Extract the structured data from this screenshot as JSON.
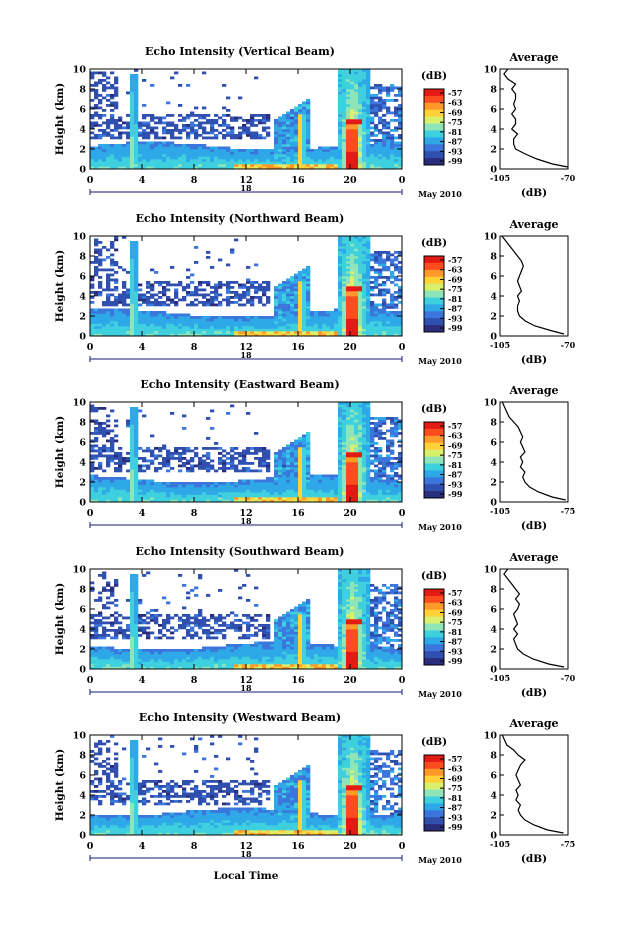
{
  "page": {
    "xlabel": "Local Time"
  },
  "colors": {
    "scale": [
      "#2a2c7c",
      "#3050b0",
      "#3a76dc",
      "#2fa8e8",
      "#3fd0e0",
      "#8ee6b8",
      "#d8f06c",
      "#ffd23a",
      "#ff9a2a",
      "#ff4c1e",
      "#e41a14"
    ]
  },
  "chart_data": [
    {
      "type": "heatmap",
      "title": "Echo Intensity (Vertical Beam)",
      "xlabel": "",
      "ylabel": "Height (km)",
      "x_ticks": [
        "0",
        "4",
        "8",
        "12",
        "16",
        "20",
        "0"
      ],
      "y_ticks": [
        "0",
        "2",
        "4",
        "6",
        "8",
        "10"
      ],
      "xlim": [
        0,
        24
      ],
      "ylim": [
        0,
        10
      ],
      "date_marker": "18",
      "date_label": "May 2010",
      "colorbar": {
        "unit": "(dB)",
        "ticks": [
          "-57",
          "-63",
          "-69",
          "-75",
          "-81",
          "-87",
          "-93",
          "-99"
        ]
      },
      "average": {
        "title": "Average",
        "xlabel": "(dB)",
        "x_ticks": [
          "-105",
          "-70"
        ],
        "xlim": [
          -105,
          -70
        ],
        "y_ticks": [
          "0",
          "2",
          "4",
          "6",
          "8",
          "10"
        ],
        "ylim": [
          0,
          10
        ],
        "profile": [
          [
            0.2,
            -70
          ],
          [
            0.5,
            -78
          ],
          [
            1.0,
            -86
          ],
          [
            1.5,
            -92
          ],
          [
            2.0,
            -97
          ],
          [
            2.5,
            -98
          ],
          [
            3.0,
            -98
          ],
          [
            3.5,
            -96
          ],
          [
            4.0,
            -99
          ],
          [
            4.5,
            -97
          ],
          [
            5.0,
            -97
          ],
          [
            5.5,
            -99
          ],
          [
            6.0,
            -97
          ],
          [
            6.5,
            -98
          ],
          [
            7.0,
            -97
          ],
          [
            7.5,
            -97
          ],
          [
            8.0,
            -99
          ],
          [
            8.5,
            -97
          ],
          [
            9.0,
            -101
          ],
          [
            9.5,
            -103
          ],
          [
            10.0,
            -101
          ]
        ]
      }
    },
    {
      "type": "heatmap",
      "title": "Echo Intensity (Northward Beam)",
      "xlabel": "",
      "ylabel": "Height (km)",
      "x_ticks": [
        "0",
        "4",
        "8",
        "12",
        "16",
        "20",
        "0"
      ],
      "y_ticks": [
        "0",
        "2",
        "4",
        "6",
        "8",
        "10"
      ],
      "xlim": [
        0,
        24
      ],
      "ylim": [
        0,
        10
      ],
      "date_marker": "18",
      "date_label": "May 2010",
      "colorbar": {
        "unit": "(dB)",
        "ticks": [
          "-57",
          "-63",
          "-69",
          "-75",
          "-81",
          "-87",
          "-93",
          "-99"
        ]
      },
      "average": {
        "title": "Average",
        "xlabel": "(dB)",
        "x_ticks": [
          "-105",
          "-70"
        ],
        "xlim": [
          -105,
          -70
        ],
        "y_ticks": [
          "0",
          "2",
          "4",
          "6",
          "8",
          "10"
        ],
        "ylim": [
          0,
          10
        ],
        "profile": [
          [
            0.2,
            -72
          ],
          [
            0.5,
            -78
          ],
          [
            1.0,
            -87
          ],
          [
            1.5,
            -92
          ],
          [
            2.0,
            -95
          ],
          [
            2.5,
            -96
          ],
          [
            3.0,
            -96
          ],
          [
            3.5,
            -95
          ],
          [
            4.0,
            -96
          ],
          [
            4.5,
            -94
          ],
          [
            5.0,
            -95
          ],
          [
            5.5,
            -96
          ],
          [
            6.0,
            -95
          ],
          [
            6.5,
            -94
          ],
          [
            7.0,
            -93
          ],
          [
            7.5,
            -94
          ],
          [
            8.0,
            -96
          ],
          [
            8.5,
            -98
          ],
          [
            9.0,
            -100
          ],
          [
            9.5,
            -102
          ],
          [
            10.0,
            -104
          ]
        ]
      }
    },
    {
      "type": "heatmap",
      "title": "Echo Intensity (Eastward Beam)",
      "xlabel": "",
      "ylabel": "Height (km)",
      "x_ticks": [
        "0",
        "4",
        "8",
        "12",
        "16",
        "20",
        "0"
      ],
      "y_ticks": [
        "0",
        "2",
        "4",
        "6",
        "8",
        "10"
      ],
      "xlim": [
        0,
        24
      ],
      "ylim": [
        0,
        10
      ],
      "date_marker": "18",
      "date_label": "May 2010",
      "colorbar": {
        "unit": "(dB)",
        "ticks": [
          "-57",
          "-63",
          "-69",
          "-75",
          "-81",
          "-87",
          "-93",
          "-99"
        ]
      },
      "average": {
        "title": "Average",
        "xlabel": "(dB)",
        "x_ticks": [
          "-105",
          "-75"
        ],
        "xlim": [
          -105,
          -75
        ],
        "y_ticks": [
          "0",
          "2",
          "4",
          "6",
          "8",
          "10"
        ],
        "ylim": [
          0,
          10
        ],
        "profile": [
          [
            0.2,
            -76
          ],
          [
            0.5,
            -82
          ],
          [
            1.0,
            -88
          ],
          [
            1.5,
            -92
          ],
          [
            2.0,
            -94
          ],
          [
            2.5,
            -95
          ],
          [
            3.0,
            -94
          ],
          [
            3.5,
            -96
          ],
          [
            4.0,
            -95
          ],
          [
            4.5,
            -96
          ],
          [
            5.0,
            -94
          ],
          [
            5.5,
            -95
          ],
          [
            6.0,
            -96
          ],
          [
            6.5,
            -95
          ],
          [
            7.0,
            -96
          ],
          [
            7.5,
            -97
          ],
          [
            8.0,
            -99
          ],
          [
            8.5,
            -101
          ],
          [
            9.0,
            -102
          ],
          [
            9.5,
            -103
          ],
          [
            10.0,
            -104
          ]
        ]
      }
    },
    {
      "type": "heatmap",
      "title": "Echo Intensity (Southward Beam)",
      "xlabel": "",
      "ylabel": "Height (km)",
      "x_ticks": [
        "0",
        "4",
        "8",
        "12",
        "16",
        "20",
        "0"
      ],
      "y_ticks": [
        "0",
        "2",
        "4",
        "6",
        "8",
        "10"
      ],
      "xlim": [
        0,
        24
      ],
      "ylim": [
        0,
        10
      ],
      "date_marker": "18",
      "date_label": "May 2010",
      "colorbar": {
        "unit": "(dB)",
        "ticks": [
          "-57",
          "-63",
          "-69",
          "-75",
          "-81",
          "-87",
          "-93",
          "-99"
        ]
      },
      "average": {
        "title": "Average",
        "xlabel": "(dB)",
        "x_ticks": [
          "-105",
          "-70"
        ],
        "xlim": [
          -105,
          -70
        ],
        "y_ticks": [
          "0",
          "2",
          "4",
          "6",
          "8",
          "10"
        ],
        "ylim": [
          0,
          10
        ],
        "profile": [
          [
            0.2,
            -72
          ],
          [
            0.5,
            -80
          ],
          [
            1.0,
            -88
          ],
          [
            1.5,
            -93
          ],
          [
            2.0,
            -96
          ],
          [
            2.5,
            -97
          ],
          [
            3.0,
            -98
          ],
          [
            3.5,
            -96
          ],
          [
            4.0,
            -98
          ],
          [
            4.5,
            -96
          ],
          [
            5.0,
            -97
          ],
          [
            5.5,
            -98
          ],
          [
            6.0,
            -96
          ],
          [
            6.5,
            -95
          ],
          [
            7.0,
            -97
          ],
          [
            7.5,
            -95
          ],
          [
            8.0,
            -97
          ],
          [
            8.5,
            -99
          ],
          [
            9.0,
            -101
          ],
          [
            9.5,
            -103
          ],
          [
            10.0,
            -101
          ]
        ]
      }
    },
    {
      "type": "heatmap",
      "title": "Echo Intensity (Westward Beam)",
      "xlabel": "Local Time",
      "ylabel": "Height (km)",
      "x_ticks": [
        "0",
        "4",
        "8",
        "12",
        "16",
        "20",
        "0"
      ],
      "y_ticks": [
        "0",
        "2",
        "4",
        "6",
        "8",
        "10"
      ],
      "xlim": [
        0,
        24
      ],
      "ylim": [
        0,
        10
      ],
      "date_marker": "18",
      "date_label": "May 2010",
      "colorbar": {
        "unit": "(dB)",
        "ticks": [
          "-57",
          "-63",
          "-69",
          "-75",
          "-81",
          "-87",
          "-93",
          "-99"
        ]
      },
      "average": {
        "title": "Average",
        "xlabel": "(dB)",
        "x_ticks": [
          "-105",
          "-75"
        ],
        "xlim": [
          -105,
          -75
        ],
        "y_ticks": [
          "0",
          "2",
          "4",
          "6",
          "8",
          "10"
        ],
        "ylim": [
          0,
          10
        ],
        "profile": [
          [
            0.2,
            -77
          ],
          [
            0.5,
            -84
          ],
          [
            1.0,
            -90
          ],
          [
            1.5,
            -94
          ],
          [
            2.0,
            -96
          ],
          [
            2.5,
            -97
          ],
          [
            3.0,
            -96
          ],
          [
            3.5,
            -98
          ],
          [
            4.0,
            -97
          ],
          [
            4.5,
            -98
          ],
          [
            5.0,
            -96
          ],
          [
            5.5,
            -97
          ],
          [
            6.0,
            -98
          ],
          [
            6.5,
            -97
          ],
          [
            7.0,
            -96
          ],
          [
            7.5,
            -94
          ],
          [
            8.0,
            -97
          ],
          [
            8.5,
            -99
          ],
          [
            9.0,
            -102
          ],
          [
            9.5,
            -103
          ],
          [
            10.0,
            -104
          ]
        ]
      }
    }
  ]
}
